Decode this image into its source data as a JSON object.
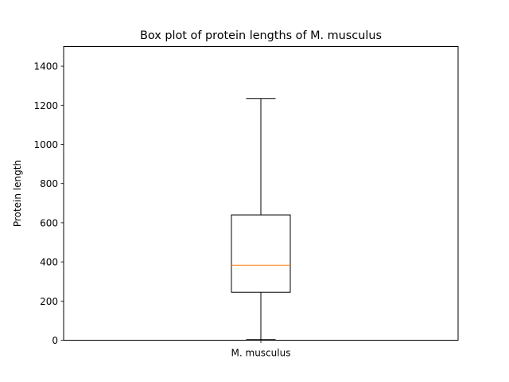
{
  "chart_data": {
    "type": "box",
    "title": "Box plot of protein lengths of M. musculus",
    "xlabel": "",
    "ylabel": "Protein length",
    "ylim": [
      0,
      1500
    ],
    "yticks": [
      0,
      200,
      400,
      600,
      800,
      1000,
      1200,
      1400
    ],
    "categories": [
      "M. musculus"
    ],
    "boxes": [
      {
        "name": "M. musculus",
        "whisker_low": 3,
        "q1": 245,
        "median": 383,
        "q3": 640,
        "whisker_high": 1235
      }
    ],
    "grid": false,
    "colors": {
      "box": "#000000",
      "median": "#ff7f0e"
    }
  }
}
